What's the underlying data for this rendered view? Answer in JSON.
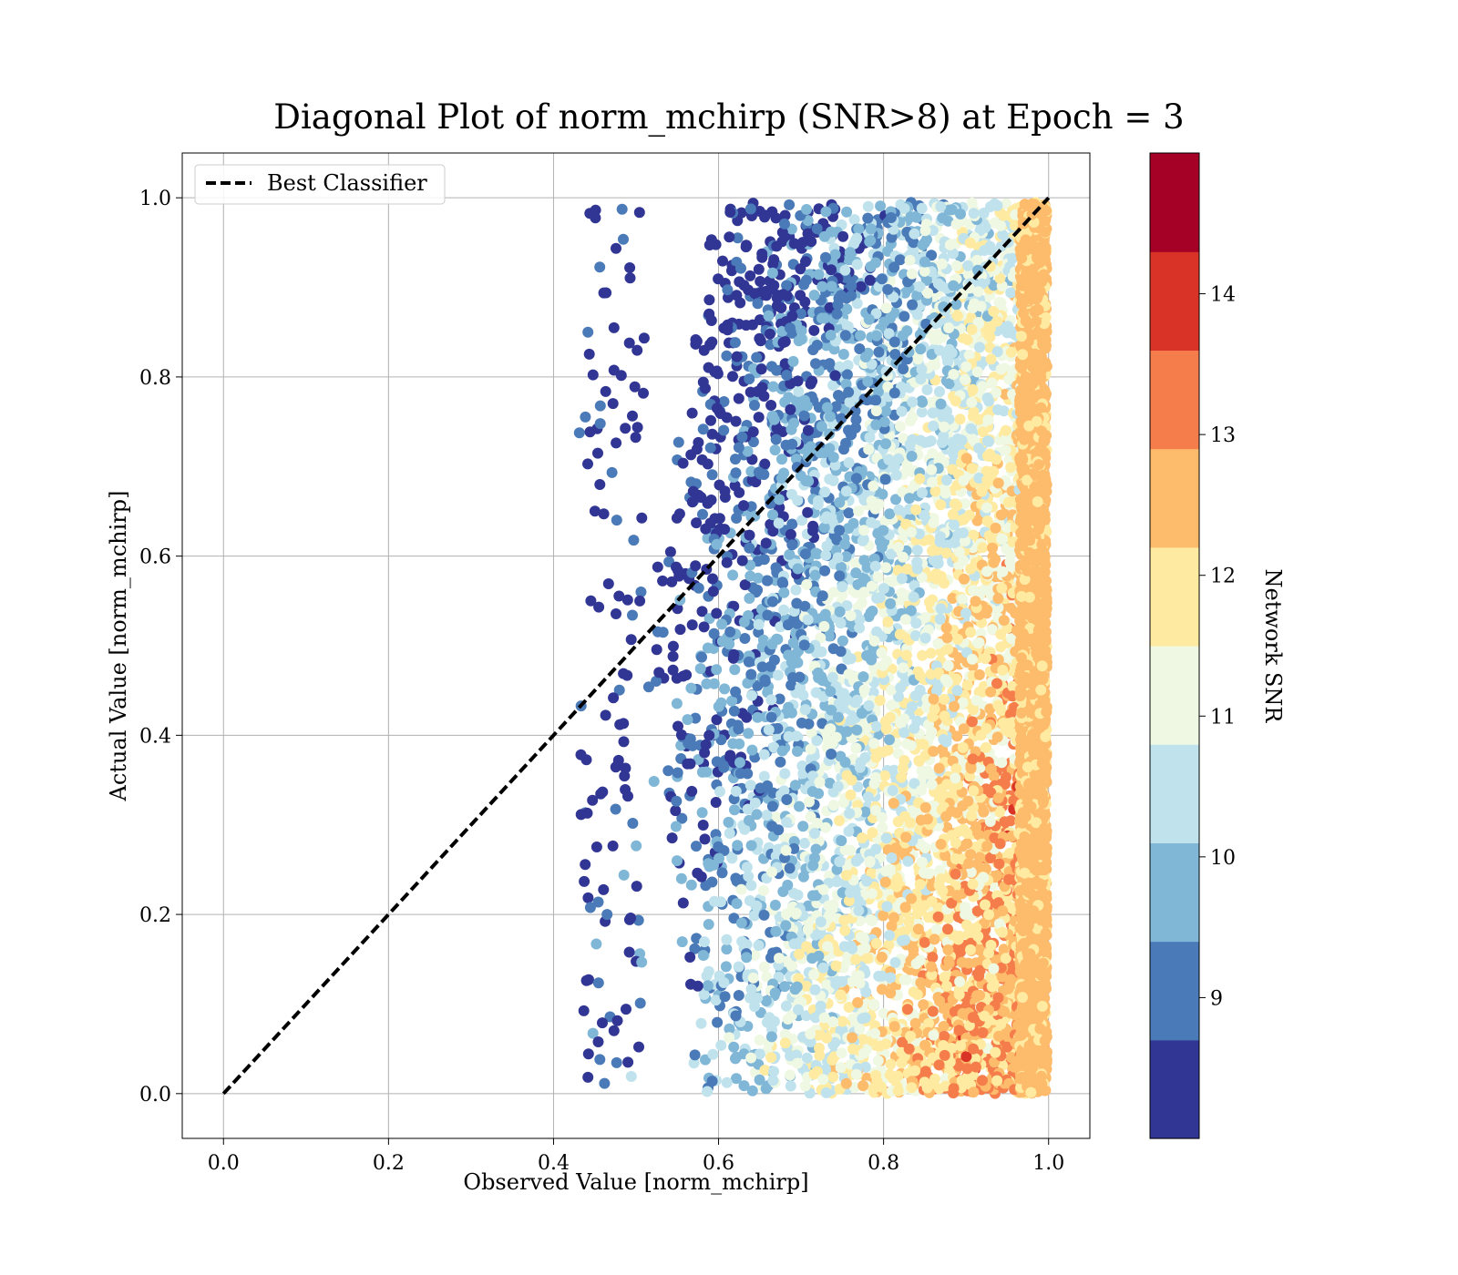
{
  "chart_data": {
    "type": "scatter",
    "title": "Diagonal Plot of norm_mchirp (SNR>8) at Epoch = 3",
    "xlabel": "Observed Value [norm_mchirp]",
    "ylabel": "Actual Value [norm_mchirp]",
    "xlim": [
      -0.05,
      1.05
    ],
    "ylim": [
      -0.05,
      1.05
    ],
    "xticks": [
      "0.0",
      "0.2",
      "0.4",
      "0.6",
      "0.8",
      "1.0"
    ],
    "yticks": [
      "0.0",
      "0.2",
      "0.4",
      "0.6",
      "0.8",
      "1.0"
    ],
    "grid": true,
    "legend": {
      "position": "top-left",
      "entries": [
        "Best Classifier"
      ]
    },
    "reference_line": {
      "name": "Best Classifier",
      "style": "dashed",
      "color": "#000000",
      "x": [
        0.0,
        1.0
      ],
      "y": [
        0.0,
        1.0
      ]
    },
    "colorbar": {
      "label": "Network SNR",
      "range": [
        8.0,
        15.0
      ],
      "ticks": [
        "9",
        "10",
        "11",
        "12",
        "13",
        "14"
      ],
      "colors": [
        "#313695",
        "#4a7ab7",
        "#80b6d6",
        "#bfe2ed",
        "#eff8e2",
        "#feeba1",
        "#fdbb6c",
        "#f57d4b",
        "#d93328",
        "#a50026"
      ]
    },
    "point_density": {
      "description_note": "",
      "x_range": [
        0.43,
        1.0
      ],
      "y_range": [
        0.0,
        1.0
      ]
    }
  }
}
